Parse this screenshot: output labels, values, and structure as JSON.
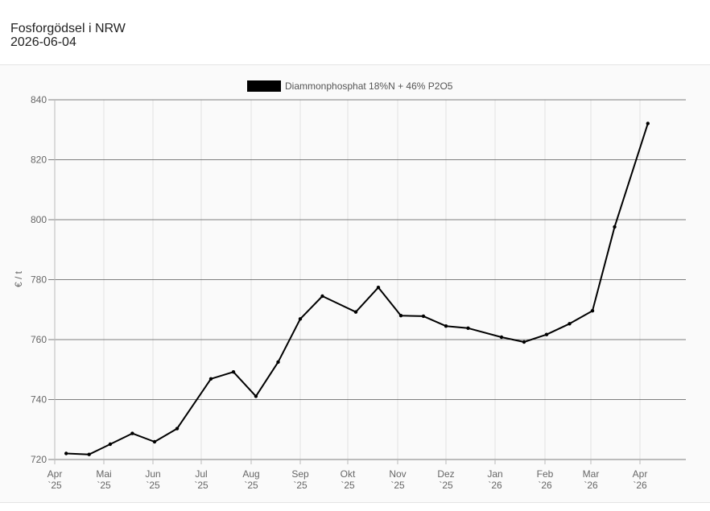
{
  "header": {
    "title": "Fosforgödsel i NRW",
    "date": "2026-06-04"
  },
  "chart_data": {
    "type": "line",
    "title": "",
    "xlabel": "",
    "ylabel": "€ / t",
    "ylim": [
      720,
      840
    ],
    "yticks": [
      720,
      740,
      760,
      780,
      800,
      820,
      840
    ],
    "x_tick_months": [
      {
        "month": "Apr",
        "year": "`25",
        "date": "2025-04-01"
      },
      {
        "month": "Mai",
        "year": "`25",
        "date": "2025-05-01"
      },
      {
        "month": "Jun",
        "year": "`25",
        "date": "2025-06-01"
      },
      {
        "month": "Jul",
        "year": "`25",
        "date": "2025-07-01"
      },
      {
        "month": "Aug",
        "year": "`25",
        "date": "2025-08-01"
      },
      {
        "month": "Sep",
        "year": "`25",
        "date": "2025-09-01"
      },
      {
        "month": "Okt",
        "year": "`25",
        "date": "2025-10-01"
      },
      {
        "month": "Nov",
        "year": "`25",
        "date": "2025-11-01"
      },
      {
        "month": "Dez",
        "year": "`25",
        "date": "2025-12-01"
      },
      {
        "month": "Jan",
        "year": "`26",
        "date": "2026-01-01"
      },
      {
        "month": "Feb",
        "year": "`26",
        "date": "2026-02-01"
      },
      {
        "month": "Mar",
        "year": "`26",
        "date": "2026-03-01"
      },
      {
        "month": "Apr",
        "year": "`26",
        "date": "2026-04-01"
      }
    ],
    "grid": true,
    "legend_position": "top-center",
    "series": [
      {
        "name": "Diammonphosphat 18%N + 46% P2O5",
        "color": "#000000",
        "points": [
          {
            "x": "2025-04-08",
            "y": 722.0
          },
          {
            "x": "2025-04-22",
            "y": 721.7
          },
          {
            "x": "2025-05-05",
            "y": 725.1
          },
          {
            "x": "2025-05-19",
            "y": 728.7
          },
          {
            "x": "2025-06-02",
            "y": 725.9
          },
          {
            "x": "2025-06-16",
            "y": 730.3
          },
          {
            "x": "2025-07-07",
            "y": 746.9
          },
          {
            "x": "2025-07-21",
            "y": 749.2
          },
          {
            "x": "2025-08-04",
            "y": 741.1
          },
          {
            "x": "2025-08-18",
            "y": 752.5
          },
          {
            "x": "2025-09-01",
            "y": 766.9
          },
          {
            "x": "2025-09-15",
            "y": 774.5
          },
          {
            "x": "2025-10-06",
            "y": 769.2
          },
          {
            "x": "2025-10-20",
            "y": 777.4
          },
          {
            "x": "2025-11-03",
            "y": 768.0
          },
          {
            "x": "2025-11-17",
            "y": 767.8
          },
          {
            "x": "2025-12-01",
            "y": 764.5
          },
          {
            "x": "2025-12-15",
            "y": 763.8
          },
          {
            "x": "2026-01-05",
            "y": 760.8
          },
          {
            "x": "2026-01-19",
            "y": 759.2
          },
          {
            "x": "2026-02-02",
            "y": 761.7
          },
          {
            "x": "2026-02-16",
            "y": 765.3
          },
          {
            "x": "2026-03-02",
            "y": 769.6
          },
          {
            "x": "2026-03-16",
            "y": 797.6
          },
          {
            "x": "2026-04-06",
            "y": 832.1
          }
        ]
      }
    ]
  }
}
